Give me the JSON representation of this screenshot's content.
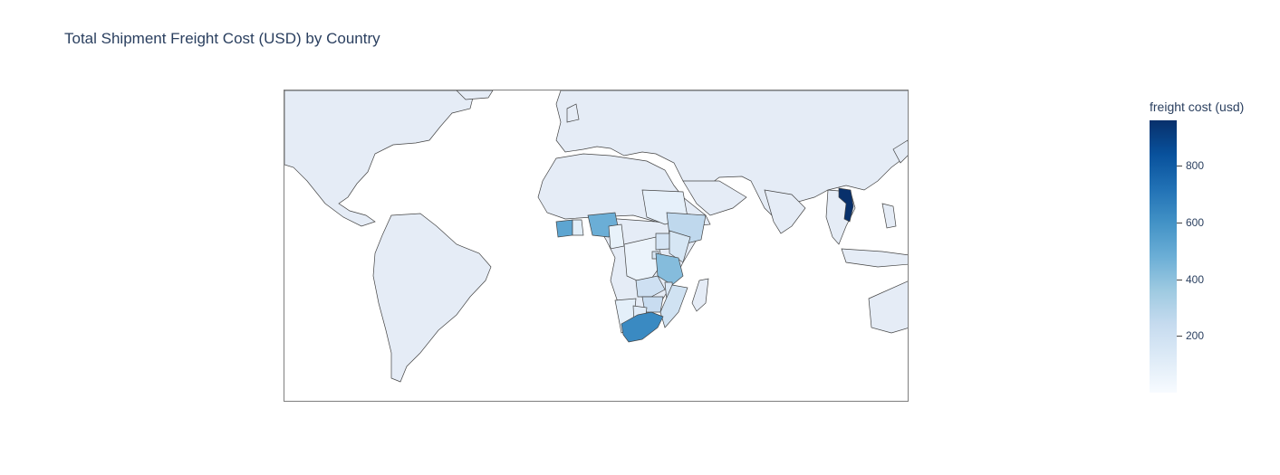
{
  "title": "Total Shipment Freight Cost (USD) by Country",
  "colorbar": {
    "title": "freight cost (usd)",
    "ticks": [
      {
        "value": 800,
        "label": "800"
      },
      {
        "value": 600,
        "label": "600"
      },
      {
        "value": 400,
        "label": "400"
      },
      {
        "value": 200,
        "label": "200"
      }
    ],
    "range": [
      0,
      960
    ],
    "colorscale": "Blues"
  },
  "map": {
    "projection": "equirectangular",
    "land_color": "#e5ecf6",
    "border_color": "#444444",
    "lon_range": [
      -100,
      140
    ],
    "lat_range": [
      -48,
      72
    ]
  },
  "chart_data": {
    "type": "choropleth",
    "title": "Total Shipment Freight Cost (USD) by Country",
    "locations": [
      "Vietnam",
      "South Africa",
      "Côte d'Ivoire",
      "Nigeria",
      "Tanzania",
      "Ethiopia",
      "Zimbabwe",
      "Zambia",
      "Mozambique",
      "Uganda",
      "Kenya",
      "Rwanda",
      "Malawi",
      "Sudan",
      "Congo (DRC)",
      "Namibia",
      "Botswana",
      "Ghana",
      "Cameroon"
    ],
    "values": [
      960,
      630,
      520,
      480,
      420,
      260,
      230,
      200,
      190,
      170,
      160,
      150,
      140,
      80,
      60,
      90,
      110,
      100,
      70
    ],
    "colorbar_title": "freight cost (usd)"
  }
}
